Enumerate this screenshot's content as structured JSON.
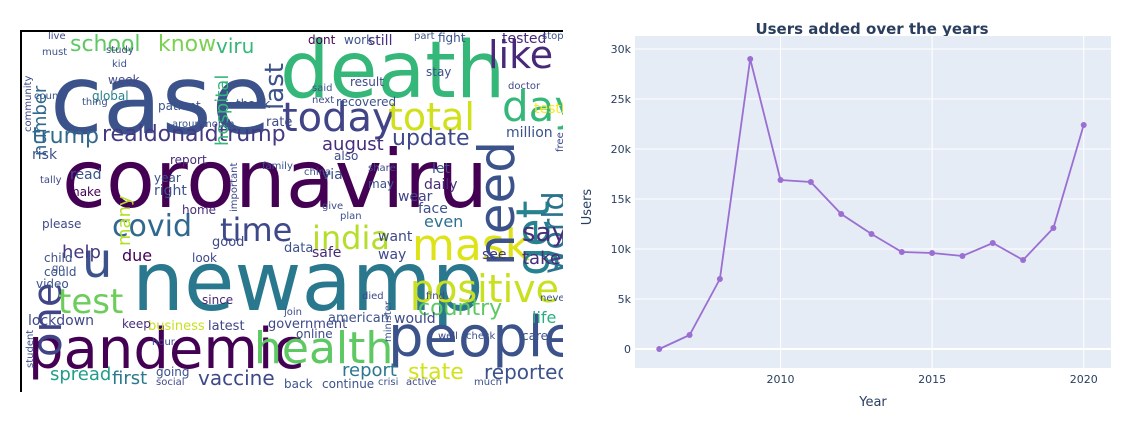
{
  "wordcloud": {
    "words": [
      {
        "text": "case",
        "color": "#3b528b"
      },
      {
        "text": "death",
        "color": "#35b779"
      },
      {
        "text": "coronaviru",
        "color": "#440154"
      },
      {
        "text": "newamp",
        "color": "#2a788e"
      },
      {
        "text": "pandemic",
        "color": "#440154"
      },
      {
        "text": "people",
        "color": "#3b528b"
      },
      {
        "text": "health",
        "color": "#5ec962"
      },
      {
        "text": "mask",
        "color": "#dde318"
      },
      {
        "text": "positive",
        "color": "#c8e020"
      },
      {
        "text": "today",
        "color": "#414487"
      },
      {
        "text": "total",
        "color": "#d0e11c"
      },
      {
        "text": "need",
        "color": "#3b528b"
      },
      {
        "text": "day",
        "color": "#35b779"
      },
      {
        "text": "like",
        "color": "#482878"
      },
      {
        "text": "get",
        "color": "#26828e"
      },
      {
        "text": "one",
        "color": "#414487"
      },
      {
        "text": "u",
        "color": "#3b528b"
      },
      {
        "text": "test",
        "color": "#6ccd5a"
      },
      {
        "text": "time",
        "color": "#3e4989"
      },
      {
        "text": "covid",
        "color": "#31688e"
      },
      {
        "text": "india",
        "color": "#b5de2b"
      },
      {
        "text": "world",
        "color": "#2c728e"
      },
      {
        "text": "say",
        "color": "#472d7b"
      },
      {
        "text": "school",
        "color": "#5ec962"
      },
      {
        "text": "know",
        "color": "#7ad151"
      },
      {
        "text": "viru",
        "color": "#35b779"
      },
      {
        "text": "last",
        "color": "#3b528b"
      },
      {
        "text": "trump",
        "color": "#31688e"
      },
      {
        "text": "realdonaldtrump",
        "color": "#443983"
      },
      {
        "text": "number",
        "color": "#31688e"
      },
      {
        "text": "update",
        "color": "#3e4989"
      },
      {
        "text": "august",
        "color": "#472d7b"
      },
      {
        "text": "vaccine",
        "color": "#3e4989"
      },
      {
        "text": "state",
        "color": "#d2e21b"
      },
      {
        "text": "reported",
        "color": "#3b528b"
      },
      {
        "text": "report",
        "color": "#2a788e"
      },
      {
        "text": "first",
        "color": "#2a788e"
      },
      {
        "text": "spread",
        "color": "#1f9e89"
      },
      {
        "text": "lockdown",
        "color": "#3e4989"
      },
      {
        "text": "country",
        "color": "#5ec962"
      },
      {
        "text": "take",
        "color": "#472d7b"
      },
      {
        "text": "help",
        "color": "#443983"
      },
      {
        "text": "due",
        "color": "#440154"
      },
      {
        "text": "million",
        "color": "#3b528b"
      },
      {
        "text": "many",
        "color": "#b5de2b"
      },
      {
        "text": "even",
        "color": "#2c728e"
      },
      {
        "text": "life",
        "color": "#29af7f"
      },
      {
        "text": "hospital",
        "color": "#35b779"
      },
      {
        "text": "government",
        "color": "#3e4989"
      },
      {
        "text": "american",
        "color": "#3b528b"
      },
      {
        "text": "latest",
        "color": "#414487"
      },
      {
        "text": "business",
        "color": "#c8e020"
      },
      {
        "text": "testing",
        "color": "#fde725"
      },
      {
        "text": "tested",
        "color": "#482878"
      },
      {
        "text": "rate",
        "color": "#3e4989"
      },
      {
        "text": "thank",
        "color": "#3b528b"
      },
      {
        "text": "week",
        "color": "#3e4989"
      },
      {
        "text": "risk",
        "color": "#3b528b"
      },
      {
        "text": "global",
        "color": "#26828e"
      },
      {
        "text": "wear",
        "color": "#414487"
      },
      {
        "text": "daily",
        "color": "#472d7b"
      },
      {
        "text": "safe",
        "color": "#482878"
      },
      {
        "text": "data",
        "color": "#3b528b"
      },
      {
        "text": "good",
        "color": "#3e4989"
      },
      {
        "text": "right",
        "color": "#3b528b"
      },
      {
        "text": "since",
        "color": "#482878"
      },
      {
        "text": "would",
        "color": "#3e4989"
      },
      {
        "text": "see",
        "color": "#443983"
      },
      {
        "text": "could",
        "color": "#3b528b"
      },
      {
        "text": "read",
        "color": "#3b528b"
      },
      {
        "text": "make",
        "color": "#440154"
      },
      {
        "text": "home",
        "color": "#472d7b"
      },
      {
        "text": "year",
        "color": "#3b528b"
      },
      {
        "text": "still",
        "color": "#472d7b"
      },
      {
        "text": "work",
        "color": "#3b528b"
      },
      {
        "text": "dont",
        "color": "#440154"
      },
      {
        "text": "report",
        "color": "#472d7b"
      },
      {
        "text": "tally",
        "color": "#3e4989"
      },
      {
        "text": "via",
        "color": "#3b528b"
      },
      {
        "text": "let",
        "color": "#3b528b"
      },
      {
        "text": "want",
        "color": "#3e4989"
      },
      {
        "text": "face",
        "color": "#3b528b"
      },
      {
        "text": "way",
        "color": "#3e4989"
      },
      {
        "text": "keep",
        "color": "#472d7b"
      },
      {
        "text": "care",
        "color": "#3b528b"
      },
      {
        "text": "online",
        "color": "#3e4989"
      },
      {
        "text": "back",
        "color": "#3b528b"
      },
      {
        "text": "going",
        "color": "#3b528b"
      },
      {
        "text": "social",
        "color": "#3e4989"
      },
      {
        "text": "continue",
        "color": "#3b528b"
      },
      {
        "text": "crisi",
        "color": "#3b528b"
      },
      {
        "text": "active",
        "color": "#3e4989"
      },
      {
        "text": "much",
        "color": "#3b528b"
      },
      {
        "text": "well",
        "color": "#3e4989"
      },
      {
        "text": "check",
        "color": "#3b528b"
      },
      {
        "text": "join",
        "color": "#3e4989"
      },
      {
        "text": "video",
        "color": "#3b528b"
      },
      {
        "text": "child",
        "color": "#3b528b"
      },
      {
        "text": "please",
        "color": "#3e4989"
      },
      {
        "text": "go",
        "color": "#3b528b"
      },
      {
        "text": "look",
        "color": "#3e4989"
      },
      {
        "text": "patient",
        "color": "#3b528b"
      },
      {
        "text": "study",
        "color": "#3e4989"
      },
      {
        "text": "kid",
        "color": "#3b528b"
      },
      {
        "text": "thing",
        "color": "#3b528b"
      },
      {
        "text": "result",
        "color": "#3e4989"
      },
      {
        "text": "recovered",
        "color": "#3b528b"
      },
      {
        "text": "next",
        "color": "#3e4989"
      },
      {
        "text": "said",
        "color": "#3b528b"
      },
      {
        "text": "also",
        "color": "#3e4989"
      },
      {
        "text": "china",
        "color": "#3b528b"
      },
      {
        "text": "give",
        "color": "#3e4989"
      },
      {
        "text": "plan",
        "color": "#3b528b"
      },
      {
        "text": "may",
        "color": "#3b528b"
      },
      {
        "text": "share",
        "color": "#3e4989"
      },
      {
        "text": "around",
        "color": "#3b528b"
      },
      {
        "text": "month",
        "color": "#3e4989"
      },
      {
        "text": "family",
        "color": "#3b528b"
      },
      {
        "text": "important",
        "color": "#3e4989"
      },
      {
        "text": "stay",
        "color": "#3b528b"
      },
      {
        "text": "doctor",
        "color": "#3e4989"
      },
      {
        "text": "fight",
        "color": "#3b528b"
      },
      {
        "text": "part",
        "color": "#3b528b"
      },
      {
        "text": "live",
        "color": "#3e4989"
      },
      {
        "text": "must",
        "color": "#3b528b"
      },
      {
        "text": "community",
        "color": "#3e4989"
      },
      {
        "text": "county",
        "color": "#3b528b"
      },
      {
        "text": "died",
        "color": "#3e4989"
      },
      {
        "text": "minister",
        "color": "#3b528b"
      },
      {
        "text": "find",
        "color": "#3e4989"
      },
      {
        "text": "never",
        "color": "#3b528b"
      },
      {
        "text": "free",
        "color": "#3e4989"
      },
      {
        "text": "student",
        "color": "#3b528b"
      },
      {
        "text": "hour",
        "color": "#3e4989"
      },
      {
        "text": "stop",
        "color": "#3b528b"
      }
    ]
  },
  "chart": {
    "title": "Users added over the years",
    "xlabel": "Year",
    "ylabel": "Users",
    "line_color": "#9b6fd1",
    "plot_bg": "#e5ecf6",
    "grid_color": "#ffffff"
  },
  "chart_data": {
    "type": "line",
    "title": "Users added over the years",
    "xlabel": "Year",
    "ylabel": "Users",
    "x": [
      2006,
      2007,
      2008,
      2009,
      2010,
      2011,
      2012,
      2013,
      2014,
      2015,
      2016,
      2017,
      2018,
      2019,
      2020
    ],
    "y": [
      0,
      1400,
      7000,
      29000,
      16900,
      16700,
      13500,
      11500,
      9700,
      9600,
      9300,
      10600,
      8900,
      12100,
      22400
    ],
    "xlim": [
      2005.2,
      2020.9
    ],
    "ylim": [
      -1900,
      31900
    ],
    "xticks": [
      2010,
      2015,
      2020
    ],
    "yticks": [
      0,
      5000,
      10000,
      15000,
      20000,
      25000,
      30000
    ],
    "ytick_labels": [
      "0",
      "5k",
      "10k",
      "15k",
      "20k",
      "25k",
      "30k"
    ],
    "grid": true,
    "legend": "none"
  }
}
